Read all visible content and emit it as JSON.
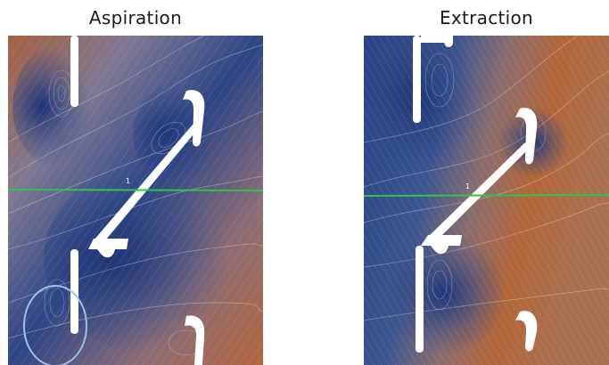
{
  "panels": [
    {
      "title": "Aspiration",
      "marker_label": "1"
    },
    {
      "title": "Extraction",
      "marker_label": "1"
    }
  ],
  "colors": {
    "flow_low": "#223a7a",
    "flow_mid": "#5a78a8",
    "flow_high": "#b5653a",
    "reference_line": "#2fc34a",
    "highlight_ring": "#9dc4e8",
    "airfoil": "#ffffff"
  }
}
